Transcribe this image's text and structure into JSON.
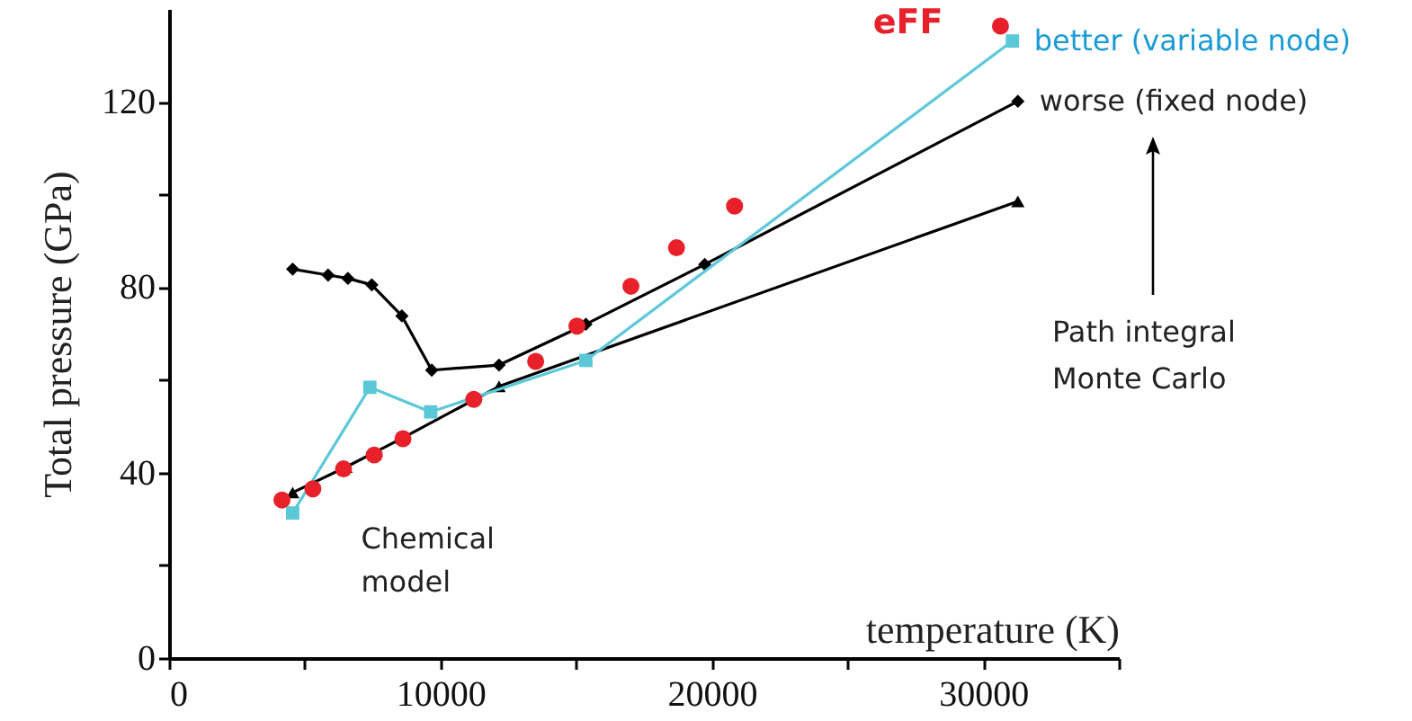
{
  "chart_data": {
    "type": "line",
    "xlabel": "temperature (K)",
    "ylabel": "Total pressure (GPa)",
    "xlim": [
      0,
      35000
    ],
    "ylim": [
      0,
      140
    ],
    "xticks": [
      0,
      {
        "value": 5000,
        "label": null
      },
      10000,
      {
        "value": 15000,
        "label": null
      },
      20000,
      {
        "value": 25000,
        "label": null
      },
      30000,
      {
        "value": 35000,
        "label": null
      }
    ],
    "yticks": [
      0,
      {
        "value": 20,
        "label": null
      },
      40,
      {
        "value": 60,
        "label": null
      },
      80,
      {
        "value": 100,
        "label": null
      },
      120
    ],
    "grid": false,
    "annotations": [
      "Path integral\nMonte Carlo"
    ],
    "series": [
      {
        "name": "worse (fixed node)",
        "marker": "diamond",
        "color": "#000000",
        "x": [
          4555,
          5860,
          6590,
          7470,
          8580,
          9680,
          12160,
          15360,
          19740,
          31280
        ],
        "values": [
          83.9,
          82.6,
          81.9,
          80.5,
          73.8,
          62.1,
          63.2,
          72.0,
          84.9,
          120.1
        ]
      },
      {
        "name": "Chemical\nmodel",
        "marker": "triangle",
        "color": "#000000",
        "x": [
          4555,
          6520,
          8580,
          12160,
          31280
        ],
        "values": [
          35.7,
          41.2,
          47.4,
          58.6,
          98.5
        ]
      },
      {
        "name": "better (variable node)",
        "marker": "square",
        "color": "#5bc8d8",
        "x": [
          4555,
          7400,
          9640,
          15360,
          31080
        ],
        "values": [
          31.3,
          58.4,
          53.1,
          64.2,
          133.1
        ]
      },
      {
        "name": "eFF",
        "type": "scatter",
        "marker": "circle",
        "color": "#e8202a",
        "x": [
          4160,
          5300,
          6430,
          7560,
          8620,
          11230,
          13510,
          15030,
          17020,
          18700,
          20840,
          30640
        ],
        "values": [
          34.1,
          36.5,
          40.8,
          43.8,
          47.3,
          55.8,
          64.0,
          71.6,
          80.2,
          88.5,
          97.5,
          136.3
        ]
      }
    ]
  }
}
